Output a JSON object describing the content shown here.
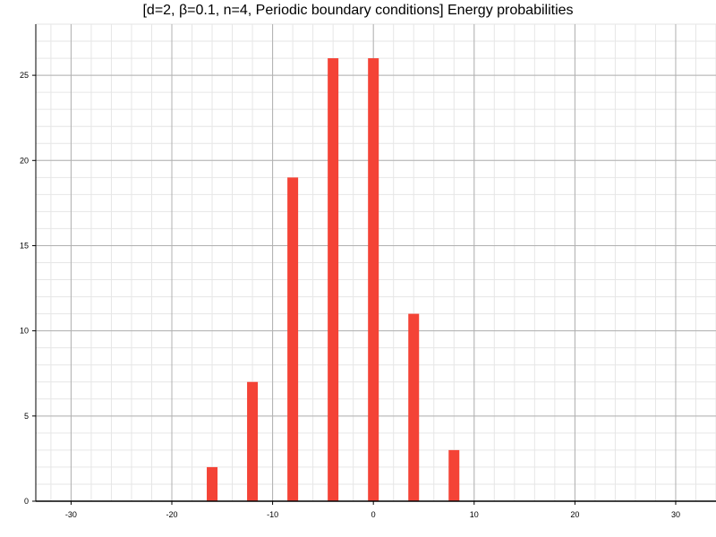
{
  "chart_data": {
    "type": "bar",
    "title": "[d=2, β=0.1, n=4, Periodic boundary conditions] Energy probabilities",
    "xlabel": "",
    "ylabel": "",
    "xlim": [
      -33.5,
      34
    ],
    "ylim": [
      0,
      28
    ],
    "x_ticks": [
      -30,
      -20,
      -10,
      0,
      10,
      20,
      30
    ],
    "y_ticks": [
      0,
      5,
      10,
      15,
      20,
      25
    ],
    "x_minor_step": 2,
    "y_minor_step": 1,
    "grid": true,
    "bar_color": "#f44336",
    "points": [
      {
        "x": -16,
        "y": 2
      },
      {
        "x": -12,
        "y": 7
      },
      {
        "x": -8,
        "y": 19
      },
      {
        "x": -4,
        "y": 26
      },
      {
        "x": 0,
        "y": 26
      },
      {
        "x": 4,
        "y": 11
      },
      {
        "x": 8,
        "y": 3
      }
    ]
  }
}
